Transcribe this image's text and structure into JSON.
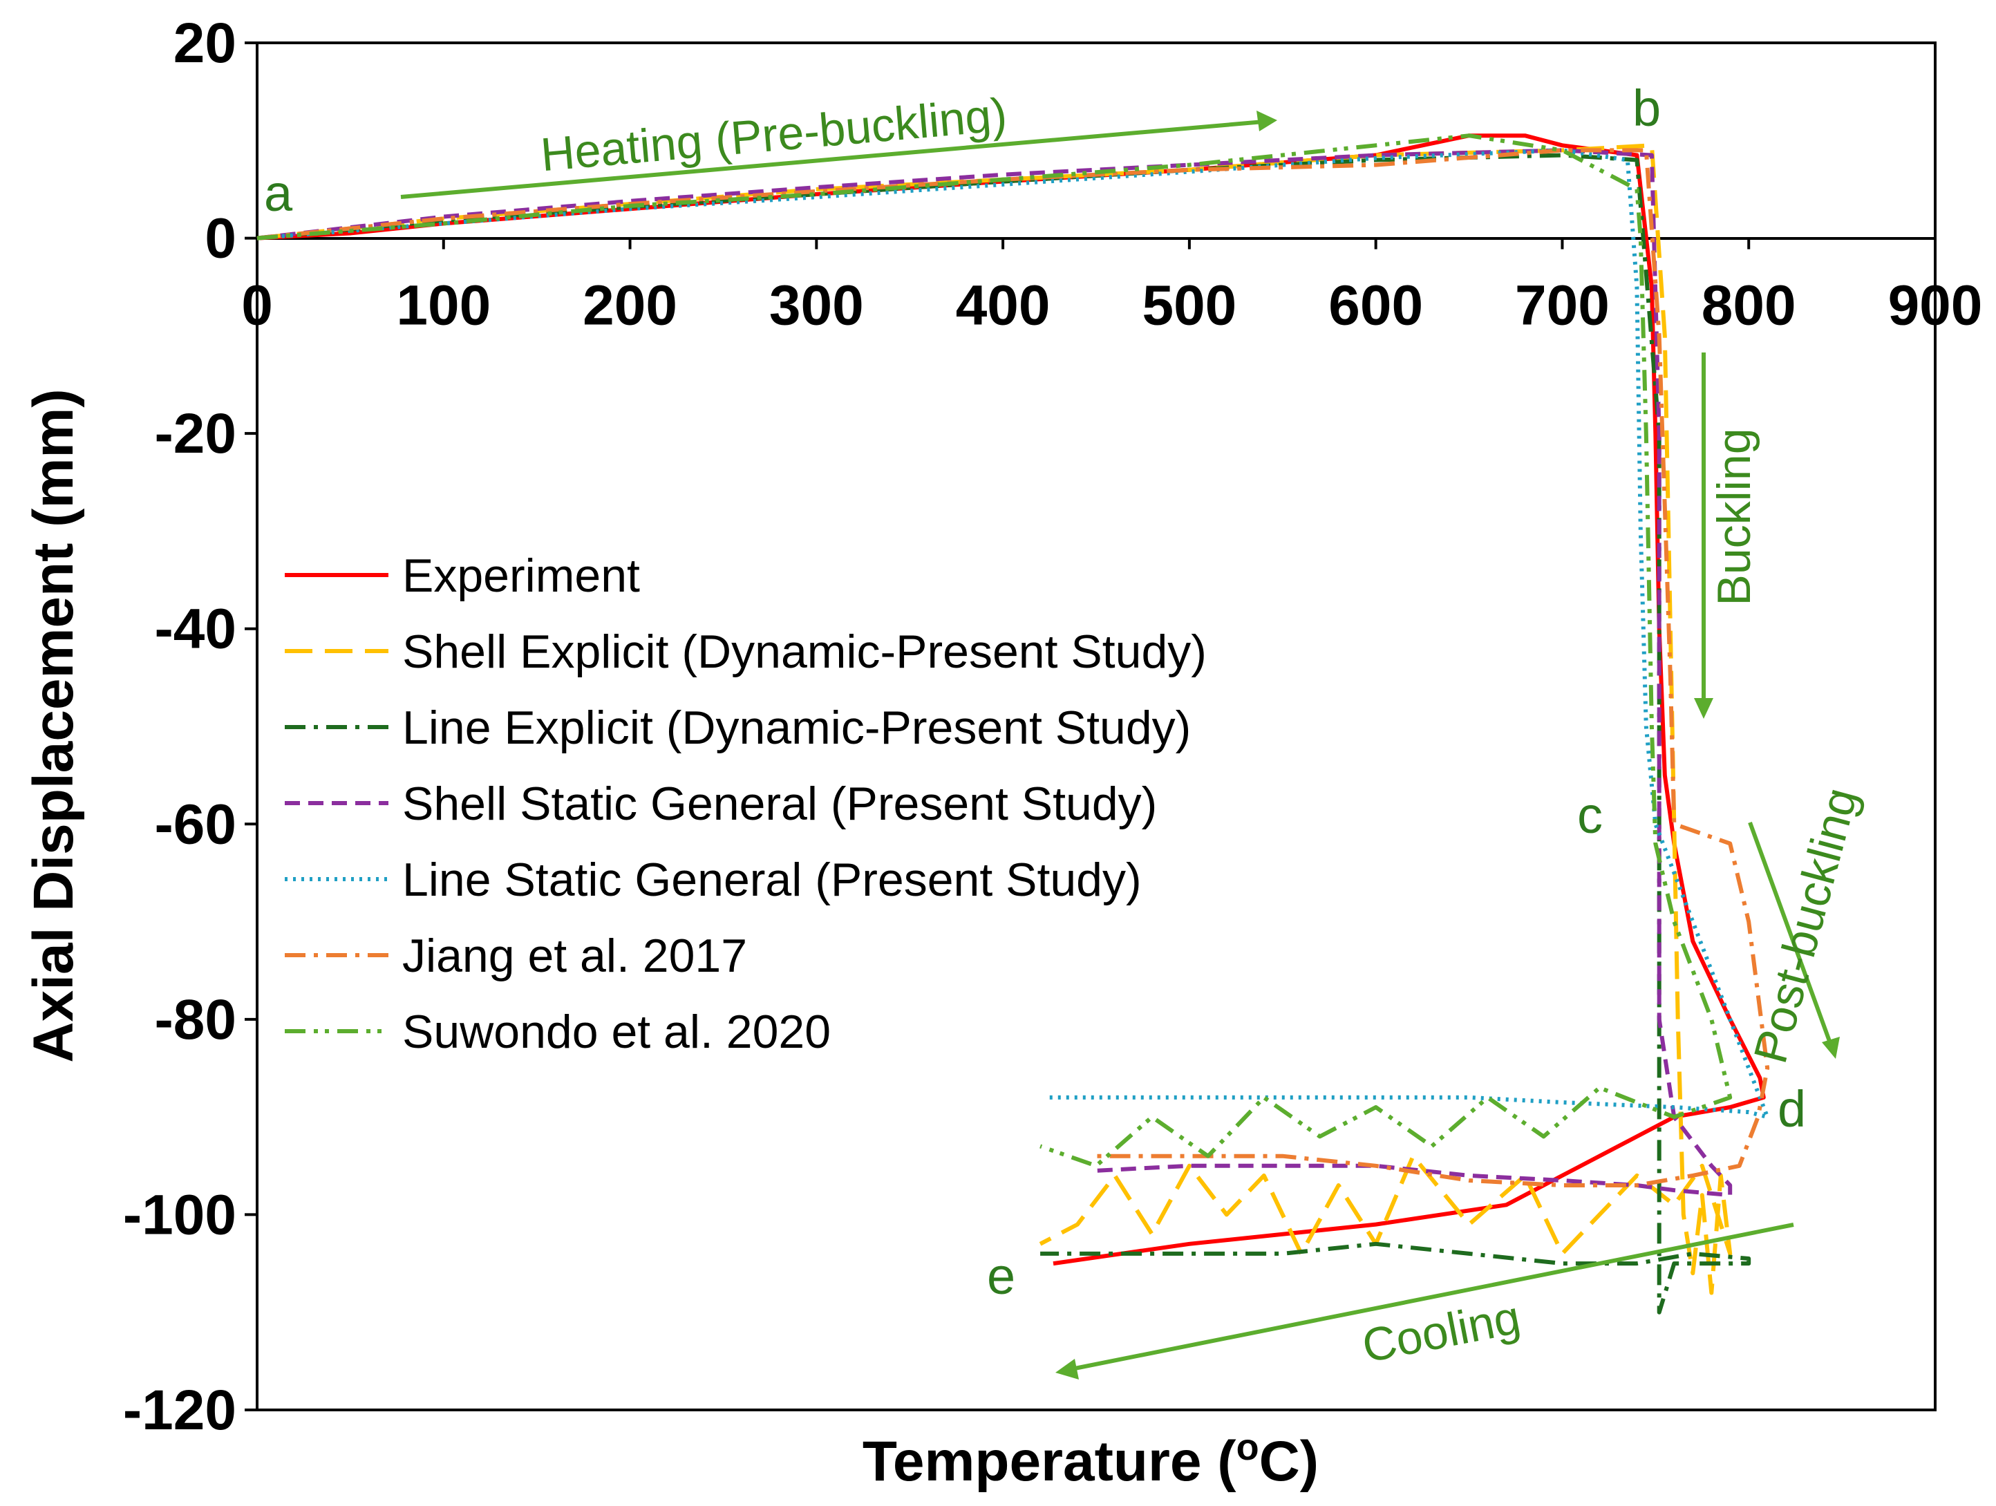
{
  "chart_data": {
    "type": "line",
    "title": "",
    "xlabel": "Temperature (",
    "xlabel_sup": "o",
    "xlabel_suffix": "C)",
    "ylabel": "Axial Displacement (mm)",
    "xlim": [
      0,
      900
    ],
    "ylim": [
      -120,
      20
    ],
    "xticks": [
      0,
      100,
      200,
      300,
      400,
      500,
      600,
      700,
      800,
      900
    ],
    "yticks": [
      20,
      0,
      -20,
      -40,
      -60,
      -80,
      -100,
      -120
    ],
    "grid": false,
    "legend_position": "left-middle",
    "series": [
      {
        "name": "Experiment",
        "color": "#ff0000",
        "style": "solid",
        "x": [
          0,
          50,
          100,
          200,
          300,
          400,
          500,
          600,
          650,
          680,
          700,
          740,
          748,
          750,
          752,
          755,
          760,
          770,
          790,
          806,
          808,
          790,
          760,
          740,
          700,
          670,
          600,
          500,
          427
        ],
        "y": [
          0,
          0.5,
          1.5,
          3,
          4.5,
          5.8,
          7,
          8.5,
          10.5,
          10.5,
          9.5,
          8.5,
          -5,
          -20,
          -40,
          -55,
          -62,
          -72,
          -80,
          -86,
          -88,
          -89,
          -90,
          -92,
          -96,
          -99,
          -101,
          -103,
          -105
        ]
      },
      {
        "name": "Shell Explicit (Dynamic-Present Study)",
        "color": "#ffc000",
        "style": "longdash",
        "x": [
          0,
          100,
          200,
          300,
          400,
          500,
          600,
          700,
          748,
          755,
          758,
          760,
          762,
          765,
          770,
          775,
          780,
          785,
          790,
          775,
          760,
          740,
          700,
          680,
          650,
          620,
          600,
          580,
          560,
          540,
          520,
          500,
          480,
          460,
          440,
          420
        ],
        "y": [
          0,
          2,
          3.5,
          5,
          6,
          7,
          8.5,
          9,
          9.5,
          -10,
          -40,
          -60,
          -80,
          -100,
          -106,
          -98,
          -108,
          -96,
          -104,
          -95,
          -99,
          -96,
          -104,
          -96,
          -101,
          -94,
          -103,
          -97,
          -104,
          -96,
          -100,
          -95,
          -102,
          -96,
          -101,
          -103
        ]
      },
      {
        "name": "Line Explicit (Dynamic-Present Study)",
        "color": "#1e6b1e",
        "style": "dashdot",
        "x": [
          0,
          100,
          200,
          300,
          400,
          500,
          600,
          700,
          740,
          752,
          752,
          752,
          752,
          760,
          780,
          800,
          800,
          770,
          740,
          700,
          650,
          600,
          550,
          500,
          450,
          420
        ],
        "y": [
          0,
          1.8,
          3.2,
          4.5,
          5.8,
          7,
          8,
          8.5,
          8,
          -20,
          -60,
          -90,
          -110,
          -105,
          -105,
          -105,
          -104.5,
          -104,
          -105,
          -105,
          -104,
          -103,
          -104,
          -104,
          -104,
          -104
        ]
      },
      {
        "name": "Shell Static General (Present Study)",
        "color": "#8b2e9e",
        "style": "dash",
        "x": [
          0,
          100,
          200,
          300,
          400,
          500,
          600,
          700,
          748,
          752,
          752,
          752,
          760,
          780,
          790,
          790,
          760,
          740,
          700,
          650,
          600,
          550,
          500,
          450
        ],
        "y": [
          0,
          2.2,
          3.8,
          5.2,
          6.5,
          7.5,
          8.5,
          9,
          8.5,
          -20,
          -60,
          -80,
          -90,
          -95,
          -97,
          -98,
          -97.5,
          -97,
          -96.5,
          -96,
          -95,
          -95,
          -95,
          -95.5
        ]
      },
      {
        "name": "Line Static General (Present Study)",
        "color": "#1f9fc4",
        "style": "dotted",
        "x": [
          0,
          100,
          200,
          300,
          400,
          500,
          600,
          700,
          735,
          740,
          742,
          745,
          750,
          760,
          780,
          800,
          810,
          800,
          760,
          700,
          650,
          600,
          500,
          425
        ],
        "y": [
          0,
          1.5,
          3,
          4.2,
          5.5,
          6.8,
          8.2,
          9,
          8,
          -5,
          -30,
          -50,
          -60,
          -65,
          -75,
          -85,
          -90,
          -89.5,
          -89,
          -88.5,
          -88,
          -88,
          -88,
          -88
        ]
      },
      {
        "name": "Jiang et al. 2017",
        "color": "#ed7d31",
        "style": "dashdot",
        "x": [
          0,
          100,
          200,
          300,
          400,
          500,
          600,
          700,
          745,
          752,
          758,
          760,
          790,
          800,
          810,
          805,
          795,
          770,
          740,
          700,
          650,
          600,
          550,
          500,
          450
        ],
        "y": [
          0,
          2,
          3.5,
          4.8,
          6,
          7,
          7.5,
          9,
          9,
          -10,
          -45,
          -60,
          -62,
          -70,
          -85,
          -90,
          -95,
          -96,
          -97,
          -97,
          -96.5,
          -95,
          -94,
          -94,
          -94
        ]
      },
      {
        "name": "Suwondo et al. 2020",
        "color": "#5cad2e",
        "style": "dashdotdot",
        "x": [
          0,
          100,
          200,
          300,
          400,
          500,
          600,
          650,
          700,
          740,
          742,
          745,
          748,
          750,
          755,
          760,
          780,
          790,
          760,
          720,
          690,
          660,
          630,
          600,
          570,
          540,
          510,
          480,
          450,
          420
        ],
        "y": [
          0,
          1.5,
          3.3,
          4.5,
          6,
          7.5,
          9.5,
          10.5,
          9,
          5,
          0,
          -20,
          -50,
          -62,
          -66,
          -70,
          -80,
          -88,
          -90,
          -87,
          -92,
          -88,
          -93,
          -89,
          -92,
          -88,
          -94,
          -90,
          -95,
          -93
        ]
      }
    ],
    "annotations": {
      "heating": "Heating (Pre-buckling)",
      "buckling": "Buckling",
      "post_buckling": "Post-buckling",
      "cooling": "Cooling",
      "points": [
        "a",
        "b",
        "c",
        "d",
        "e"
      ]
    }
  },
  "colors": {
    "annotation_green": "#3c8a1e",
    "axis": "#000000"
  }
}
